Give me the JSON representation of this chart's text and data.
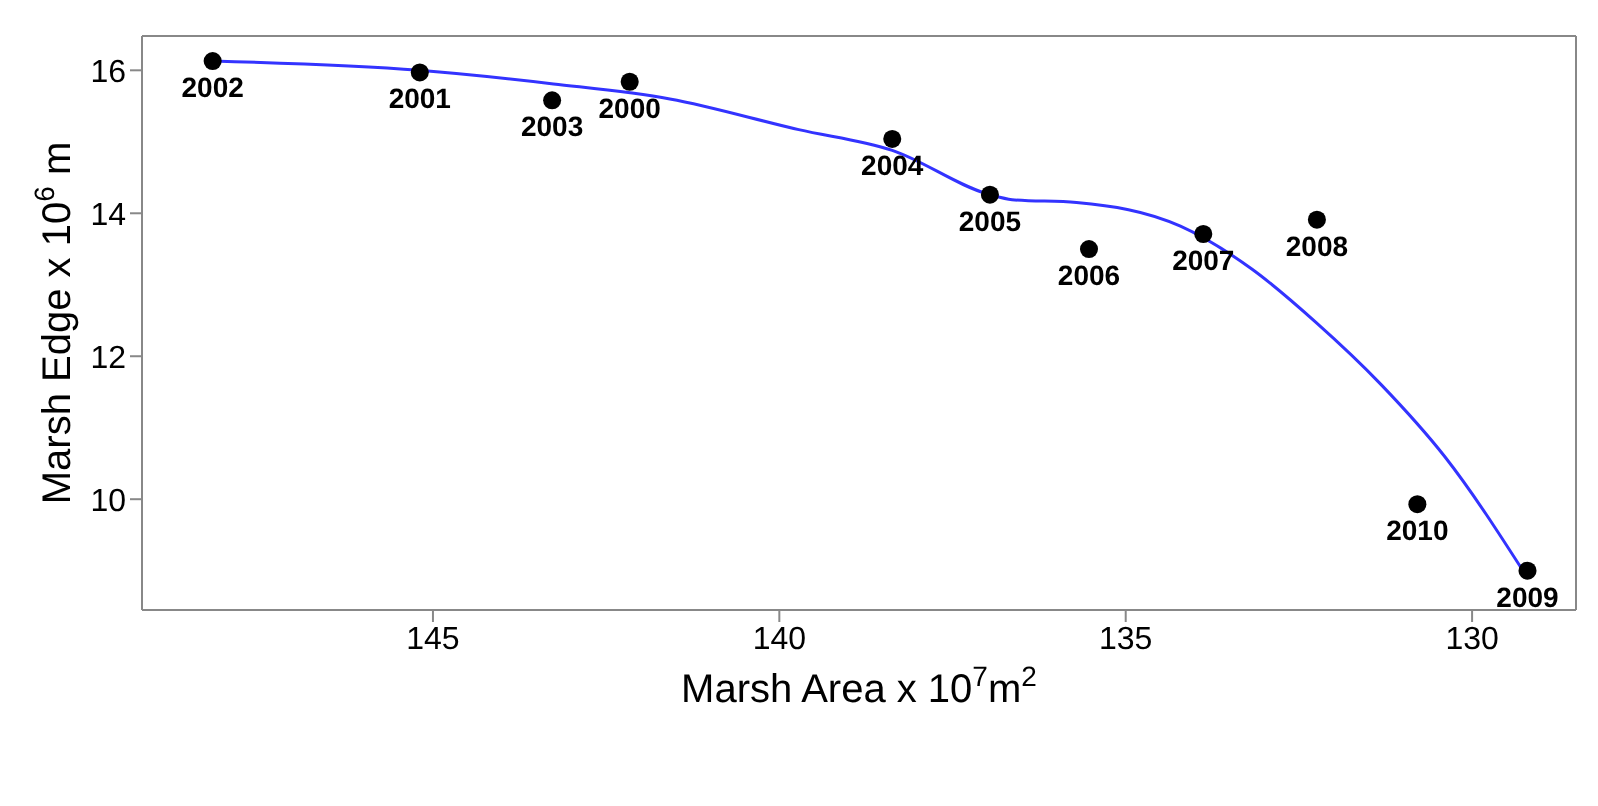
{
  "chart_data": {
    "type": "scatter",
    "xlabel": "Marsh Area x 10$^{7}$m$^{2}$",
    "ylabel": "Marsh Edge x 10$^{6}$ m",
    "xlim": [
      149.2,
      128.5
    ],
    "xticks": [
      145,
      140,
      135,
      130
    ],
    "ylim": [
      8.45,
      16.48
    ],
    "yticks": [
      10,
      12,
      14,
      16
    ],
    "marker": "circle",
    "x": [
      148.18,
      145.19,
      143.28,
      142.16,
      138.37,
      136.96,
      135.53,
      133.88,
      132.24,
      130.79,
      129.2
    ],
    "series": [
      {
        "color": "#000000",
        "values": [
          16.13,
          15.97,
          15.58,
          15.84,
          15.04,
          14.26,
          13.5,
          13.71,
          13.91,
          9.93,
          9.0
        ]
      },
      {
        "type": "line",
        "color": "#3333ff",
        "marker": "none",
        "x": [
          148.18,
          145.2,
          143.26,
          141.58,
          139.72,
          138.37,
          136.96,
          136.64,
          135.71,
          134.21,
          133.18,
          132.25,
          131.32,
          130.39,
          129.2
        ],
        "values": [
          16.13,
          16.0,
          15.81,
          15.6,
          15.17,
          14.88,
          14.26,
          14.19,
          14.15,
          13.82,
          13.22,
          12.47,
          11.61,
          10.59,
          8.9
        ]
      }
    ],
    "annotations": [
      {
        "text": "2002",
        "x": 148.18,
        "y": 16.13
      },
      {
        "text": "2001",
        "x": 145.19,
        "y": 15.97
      },
      {
        "text": "2003",
        "x": 143.28,
        "y": 15.58
      },
      {
        "text": "2000",
        "x": 142.16,
        "y": 15.84
      },
      {
        "text": "2004",
        "x": 138.37,
        "y": 15.04
      },
      {
        "text": "2005",
        "x": 136.96,
        "y": 14.26
      },
      {
        "text": "2006",
        "x": 135.53,
        "y": 13.5
      },
      {
        "text": "2007",
        "x": 133.88,
        "y": 13.71
      },
      {
        "text": "2008",
        "x": 132.24,
        "y": 13.91
      },
      {
        "text": "2010",
        "x": 130.79,
        "y": 9.93
      },
      {
        "text": "2009",
        "x": 129.2,
        "y": 9.0
      }
    ]
  }
}
